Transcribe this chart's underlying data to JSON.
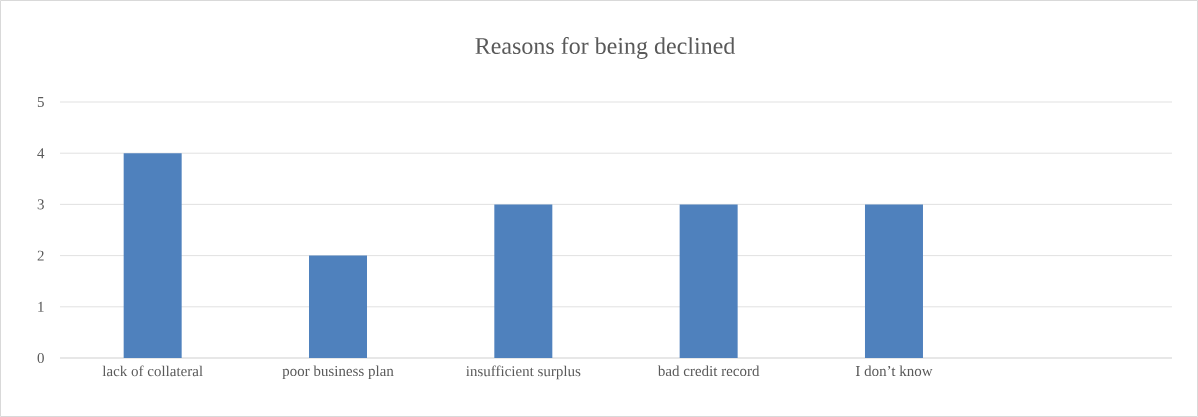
{
  "chart_data": {
    "type": "bar",
    "title": "Reasons for being declined",
    "categories": [
      "lack of collateral",
      "poor business plan",
      "insufficient surplus",
      "bad credit record",
      "I don’t know",
      null
    ],
    "values": [
      4,
      2,
      3,
      3,
      3,
      null
    ],
    "color": "#4f81bd",
    "ylim": [
      0,
      5
    ],
    "yticks": [
      0,
      1,
      2,
      3,
      4,
      5
    ],
    "grid": "y"
  }
}
